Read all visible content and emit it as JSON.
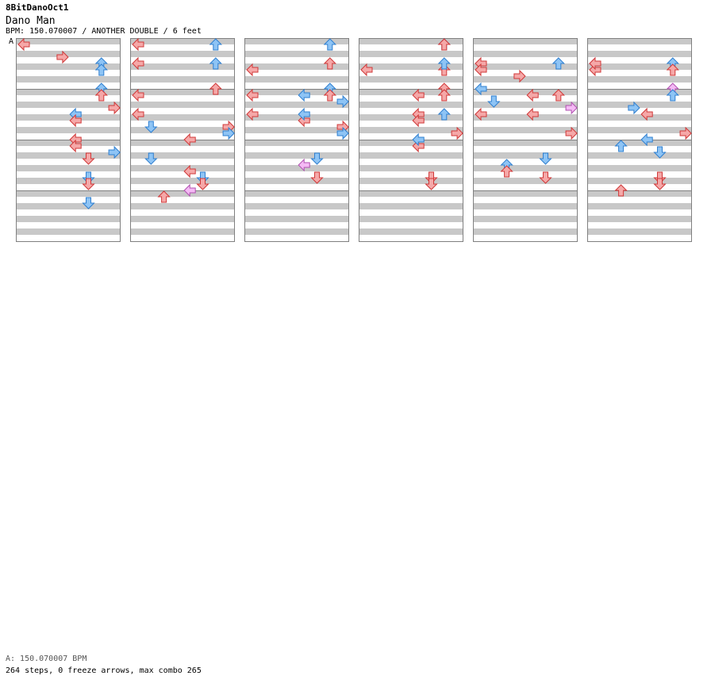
{
  "header": {
    "song_id": "8BitDanoOct1",
    "title": "Dano Man",
    "meta": "BPM: 150.070007 / ANOTHER DOUBLE / 6 feet",
    "bpm_marker": "A"
  },
  "footer": {
    "bpm_line": "A: 150.070007 BPM",
    "stats_line": "264 steps, 0 freeze arrows, max combo 265"
  },
  "colors": {
    "stripe": "#c8c8c8",
    "border": "#808080",
    "red_fill": "#f5a8a8",
    "red_stroke": "#d03838",
    "blue_fill": "#8ec4f5",
    "blue_stroke": "#2f7fd0",
    "pink_fill": "#f5baf5",
    "pink_stroke": "#b050b0"
  },
  "chart_data": {
    "type": "step-chart",
    "lanes": [
      "P1-left",
      "P1-down",
      "P1-up",
      "P1-right",
      "P2-left",
      "P2-down",
      "P2-up",
      "P2-right"
    ],
    "measures": 48,
    "measures_per_column": 12,
    "note_types": {
      "r": "4th",
      "b": "8th",
      "p": "16th"
    },
    "notes": [
      [
        0,
        0,
        0,
        "r"
      ],
      [
        0,
        3,
        1,
        "r"
      ],
      [
        0,
        4,
        1,
        "b"
      ],
      [
        0,
        5,
        1,
        "r"
      ],
      [
        0,
        6,
        1,
        "b"
      ],
      [
        0,
        7,
        1,
        "r"
      ],
      [
        0,
        5,
        2,
        "b"
      ],
      [
        0,
        4,
        2,
        "r"
      ],
      [
        0,
        6,
        2,
        "b"
      ],
      [
        0,
        4,
        3,
        "r"
      ],
      [
        0,
        5,
        3,
        "r"
      ],
      [
        0,
        6,
        3,
        "b"
      ],
      [
        0,
        4,
        4,
        "r"
      ],
      [
        0,
        5,
        4,
        "b"
      ],
      [
        0,
        6,
        4,
        "r"
      ],
      [
        0,
        7,
        4,
        "b"
      ],
      [
        1,
        0,
        4,
        "r"
      ],
      [
        1,
        0,
        1,
        "r"
      ],
      [
        1,
        0,
        5,
        "r"
      ],
      [
        1,
        0,
        0,
        "r"
      ],
      [
        1,
        1,
        2,
        "b"
      ],
      [
        1,
        2,
        4,
        "r"
      ],
      [
        1,
        1,
        5,
        "b"
      ],
      [
        1,
        4,
        3,
        "r"
      ],
      [
        1,
        4,
        6,
        "r"
      ],
      [
        1,
        4,
        7,
        "p"
      ],
      [
        1,
        5,
        2,
        "b"
      ],
      [
        1,
        5,
        3,
        "r"
      ],
      [
        1,
        6,
        1,
        "b"
      ],
      [
        1,
        6,
        3,
        "r"
      ],
      [
        1,
        6,
        0,
        "b"
      ],
      [
        1,
        7,
        2,
        "r"
      ],
      [
        1,
        7,
        3,
        "b"
      ],
      [
        2,
        0,
        5,
        "r"
      ],
      [
        2,
        0,
        4,
        "r"
      ],
      [
        2,
        0,
        2,
        "r"
      ],
      [
        2,
        4,
        2,
        "r"
      ],
      [
        2,
        4,
        0,
        "b"
      ],
      [
        2,
        4,
        1,
        "b"
      ],
      [
        2,
        4,
        5,
        "p"
      ],
      [
        2,
        5,
        2,
        "r"
      ],
      [
        2,
        5,
        1,
        "b"
      ],
      [
        2,
        6,
        0,
        "b"
      ],
      [
        2,
        6,
        1,
        "r"
      ],
      [
        2,
        6,
        3,
        "b"
      ],
      [
        2,
        6,
        4,
        "r"
      ],
      [
        2,
        7,
        2,
        "r"
      ],
      [
        2,
        7,
        0,
        "b"
      ],
      [
        2,
        7,
        3,
        "b"
      ],
      [
        3,
        0,
        2,
        "r"
      ],
      [
        3,
        4,
        4,
        "r"
      ],
      [
        3,
        4,
        0,
        "r"
      ],
      [
        3,
        4,
        1,
        "r"
      ],
      [
        3,
        4,
        2,
        "r"
      ],
      [
        3,
        4,
        3,
        "b"
      ],
      [
        3,
        5,
        2,
        "r"
      ],
      [
        3,
        5,
        3,
        "r"
      ],
      [
        3,
        6,
        0,
        "b"
      ],
      [
        3,
        6,
        2,
        "r"
      ],
      [
        3,
        6,
        1,
        "b"
      ],
      [
        3,
        6,
        3,
        "r"
      ],
      [
        3,
        6,
        4,
        "r"
      ],
      [
        3,
        6,
        5,
        "b"
      ],
      [
        3,
        6,
        0,
        "r"
      ],
      [
        3,
        7,
        3,
        "r"
      ],
      [
        4,
        0,
        5,
        "r"
      ],
      [
        4,
        0,
        1,
        "r"
      ],
      [
        4,
        0,
        2,
        "r"
      ],
      [
        4,
        0,
        3,
        "b"
      ],
      [
        4,
        1,
        0,
        "b"
      ],
      [
        4,
        2,
        1,
        "b"
      ],
      [
        4,
        2,
        2,
        "r"
      ],
      [
        4,
        3,
        2,
        "r"
      ],
      [
        4,
        4,
        1,
        "r"
      ],
      [
        4,
        4,
        0,
        "r"
      ],
      [
        4,
        5,
        2,
        "r"
      ],
      [
        4,
        5,
        1,
        "b"
      ],
      [
        4,
        6,
        4,
        "r"
      ],
      [
        4,
        6,
        1,
        "b"
      ],
      [
        4,
        7,
        1,
        "p"
      ],
      [
        4,
        7,
        3,
        "r"
      ],
      [
        5,
        0,
        1,
        "p"
      ],
      [
        5,
        0,
        2,
        "r"
      ],
      [
        5,
        0,
        1,
        "r"
      ],
      [
        5,
        2,
        0,
        "b"
      ],
      [
        5,
        2,
        3,
        "r"
      ],
      [
        5,
        3,
        5,
        "b"
      ],
      [
        5,
        4,
        1,
        "r"
      ],
      [
        5,
        4,
        3,
        "b"
      ],
      [
        5,
        5,
        0,
        "b"
      ],
      [
        5,
        5,
        2,
        "r"
      ],
      [
        5,
        5,
        3,
        "r"
      ],
      [
        5,
        6,
        1,
        "b"
      ],
      [
        5,
        6,
        3,
        "p"
      ],
      [
        5,
        6,
        2,
        "r"
      ],
      [
        5,
        6,
        4,
        "b"
      ],
      [
        5,
        7,
        3,
        "r"
      ]
    ]
  }
}
